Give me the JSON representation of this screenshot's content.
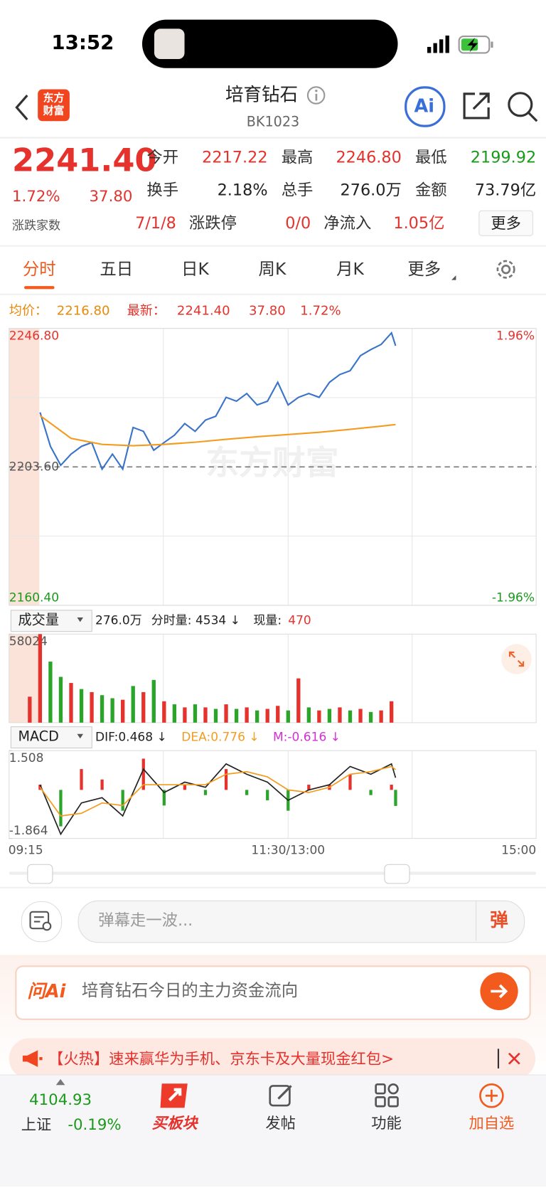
{
  "status_bar": {
    "time": "13:52"
  },
  "header": {
    "logo": "东方财富",
    "title": "培育钻石",
    "code": "BK1023",
    "ai": "Ai"
  },
  "quote": {
    "price": "2241.40",
    "change_pct": "1.72%",
    "change": "37.80",
    "stats": [
      {
        "label": "今开",
        "value": "2217.22"
      },
      {
        "label": "最高",
        "value": "2246.80"
      },
      {
        "label": "最低",
        "value": "2199.92"
      },
      {
        "label": "换手",
        "value": "2.18%"
      },
      {
        "label": "总手",
        "value": "276.0万"
      },
      {
        "label": "金额",
        "value": "73.79亿"
      },
      {
        "label": "涨跌家数",
        "value": "7/1/8"
      },
      {
        "label": "涨跌停",
        "value": "0/0"
      },
      {
        "label": "净流入",
        "value": "1.05亿"
      }
    ],
    "more": "更多"
  },
  "tabs": [
    "分时",
    "五日",
    "日K",
    "周K",
    "月K",
    "更多"
  ],
  "chart_info": {
    "avg_label": "均价：",
    "avg": "2216.80",
    "latest_label": "最新：",
    "latest": "2241.40",
    "change": "37.80",
    "change_pct": "1.72%"
  },
  "chart_data": [
    {
      "type": "line",
      "watermark": "东方财富",
      "grid": true,
      "ylim": [
        2160.4,
        2246.8
      ],
      "yticks": [
        {
          "value": 2246.8,
          "label": "2246.80"
        },
        {
          "value": 2203.6,
          "label": "2203.60"
        },
        {
          "value": 2160.4,
          "label": "2160.40"
        }
      ],
      "y2lim": [
        -1.96,
        1.96
      ],
      "y2ticks": [
        {
          "value": 1.96,
          "label": "1.96%"
        },
        {
          "value": -1.96,
          "label": "-1.96%"
        }
      ],
      "xticks": [
        "09:15",
        "11:30/13:00",
        "15:00"
      ],
      "series": [
        {
          "color": "#3a74c9",
          "x": [
            "09:30",
            "09:35",
            "09:40",
            "09:45",
            "09:50",
            "09:55",
            "10:00",
            "10:05",
            "10:10",
            "10:15",
            "10:20",
            "10:25",
            "10:30",
            "10:35",
            "10:40",
            "10:45",
            "10:50",
            "10:55",
            "11:00",
            "11:05",
            "11:10",
            "11:15",
            "11:20",
            "11:25",
            "11:30",
            "13:05",
            "13:10",
            "13:15",
            "13:20",
            "13:25",
            "13:30",
            "13:35",
            "13:40",
            "13:45",
            "13:50",
            "13:52"
          ],
          "values": [
            2220.6,
            2210.0,
            2204.1,
            2207.6,
            2210.0,
            2211.2,
            2202.9,
            2207.6,
            2202.9,
            2215.9,
            2214.7,
            2208.8,
            2211.2,
            2213.5,
            2217.1,
            2214.7,
            2218.2,
            2219.4,
            2225.3,
            2224.1,
            2226.5,
            2222.9,
            2224.1,
            2230.0,
            2222.9,
            2225.3,
            2226.5,
            2225.3,
            2230.0,
            2232.4,
            2233.6,
            2238.3,
            2240.2,
            2241.8,
            2245.4,
            2241.4
          ]
        },
        {
          "color": "#f39c1f",
          "x": [
            "09:30",
            "09:45",
            "10:00",
            "10:15",
            "10:30",
            "10:45",
            "11:00",
            "11:15",
            "11:30",
            "13:15",
            "13:30",
            "13:45",
            "13:52"
          ],
          "values": [
            2219.6,
            2212.5,
            2210.6,
            2210.2,
            2210.6,
            2211.3,
            2212.2,
            2213.0,
            2213.7,
            2214.4,
            2215.3,
            2216.3,
            2216.8
          ]
        }
      ]
    },
    {
      "type": "bar",
      "title": "成交量",
      "labels": [
        "276.0万",
        "分时量: 4534 ↓"
      ],
      "current_label": "现量:",
      "current": 470,
      "ylim": [
        0,
        58024
      ],
      "yticks": [
        58024
      ],
      "x": [
        "09:25",
        "09:30",
        "09:35",
        "09:40",
        "09:45",
        "09:50",
        "09:55",
        "10:00",
        "10:05",
        "10:10",
        "10:15",
        "10:20",
        "10:25",
        "10:30",
        "10:35",
        "10:40",
        "10:45",
        "10:50",
        "10:55",
        "11:00",
        "11:05",
        "11:10",
        "11:15",
        "11:20",
        "11:25",
        "11:30",
        "13:05",
        "13:10",
        "13:15",
        "13:20",
        "13:25",
        "13:30",
        "13:35",
        "13:40",
        "13:45",
        "13:50"
      ],
      "values": [
        17000,
        58024,
        40000,
        30000,
        26000,
        22000,
        20000,
        18000,
        16000,
        15000,
        24000,
        20000,
        28000,
        14000,
        12000,
        10000,
        12000,
        10000,
        9000,
        12000,
        9000,
        10000,
        8000,
        9000,
        11000,
        8000,
        29000,
        10000,
        8000,
        9000,
        10000,
        8000,
        9000,
        7000,
        8000,
        14000
      ],
      "bar_colors": [
        "#e5322d",
        "#e5322d",
        "#2aa52a",
        "#2aa52a",
        "#e5322d",
        "#2aa52a",
        "#e5322d",
        "#2aa52a",
        "#2aa52a",
        "#e5322d",
        "#2aa52a",
        "#e5322d",
        "#2aa52a",
        "#e5322d",
        "#2aa52a",
        "#e5322d",
        "#2aa52a",
        "#e5322d",
        "#2aa52a",
        "#e5322d",
        "#2aa52a",
        "#e5322d",
        "#2aa52a",
        "#e5322d",
        "#e5322d",
        "#2aa52a",
        "#e5322d",
        "#2aa52a",
        "#e5322d",
        "#2aa52a",
        "#e5322d",
        "#2aa52a",
        "#e5322d",
        "#2aa52a",
        "#e5322d",
        "#e5322d"
      ]
    },
    {
      "type": "macd",
      "title": "MACD",
      "ylim": [
        -1.864,
        1.508
      ],
      "yticks": [
        1.508,
        -1.864
      ],
      "x": [
        "09:30",
        "09:40",
        "09:50",
        "10:00",
        "10:10",
        "10:20",
        "10:30",
        "10:40",
        "10:50",
        "11:00",
        "11:10",
        "11:20",
        "11:30",
        "13:10",
        "13:20",
        "13:30",
        "13:40",
        "13:50",
        "13:52"
      ],
      "series": [
        {
          "name": "DIF:0.468 ↓",
          "color": "#222222",
          "style": "line",
          "values": [
            0.2,
            -1.7,
            -0.5,
            -0.3,
            -1.0,
            0.8,
            -0.1,
            0.3,
            0.1,
            1.0,
            0.6,
            0.3,
            -0.4,
            0.0,
            0.2,
            0.9,
            0.6,
            1.0,
            0.468
          ]
        },
        {
          "name": "DEA:0.776 ↓",
          "color": "#f39c1f",
          "style": "line",
          "values": [
            0.1,
            -1.0,
            -0.9,
            -0.5,
            -0.6,
            0.2,
            0.2,
            0.2,
            0.2,
            0.6,
            0.7,
            0.5,
            0.0,
            -0.1,
            0.1,
            0.6,
            0.7,
            0.9,
            0.776
          ]
        },
        {
          "name": "M:-0.616 ↓",
          "color": "#d42fd4",
          "style": "bar",
          "values": [
            0.2,
            -1.4,
            0.8,
            0.4,
            -0.8,
            1.2,
            -0.6,
            0.2,
            -0.2,
            0.8,
            -0.2,
            -0.4,
            -0.8,
            0.2,
            0.2,
            0.6,
            -0.2,
            0.2,
            -0.616
          ]
        }
      ]
    }
  ],
  "comment": {
    "placeholder": "弹幕走一波...",
    "button": "弹"
  },
  "ask_ai": {
    "brand": "问Ai",
    "prompt": "培育钻石今日的主力资金流向"
  },
  "banner": {
    "text": "【火热】速来赢华为手机、京东卡及大量现金红包>"
  },
  "index": {
    "value": "4104.93",
    "name": "上证",
    "change_pct": "-0.19%"
  },
  "nav": [
    "买板块",
    "发帖",
    "功能",
    "加自选"
  ]
}
